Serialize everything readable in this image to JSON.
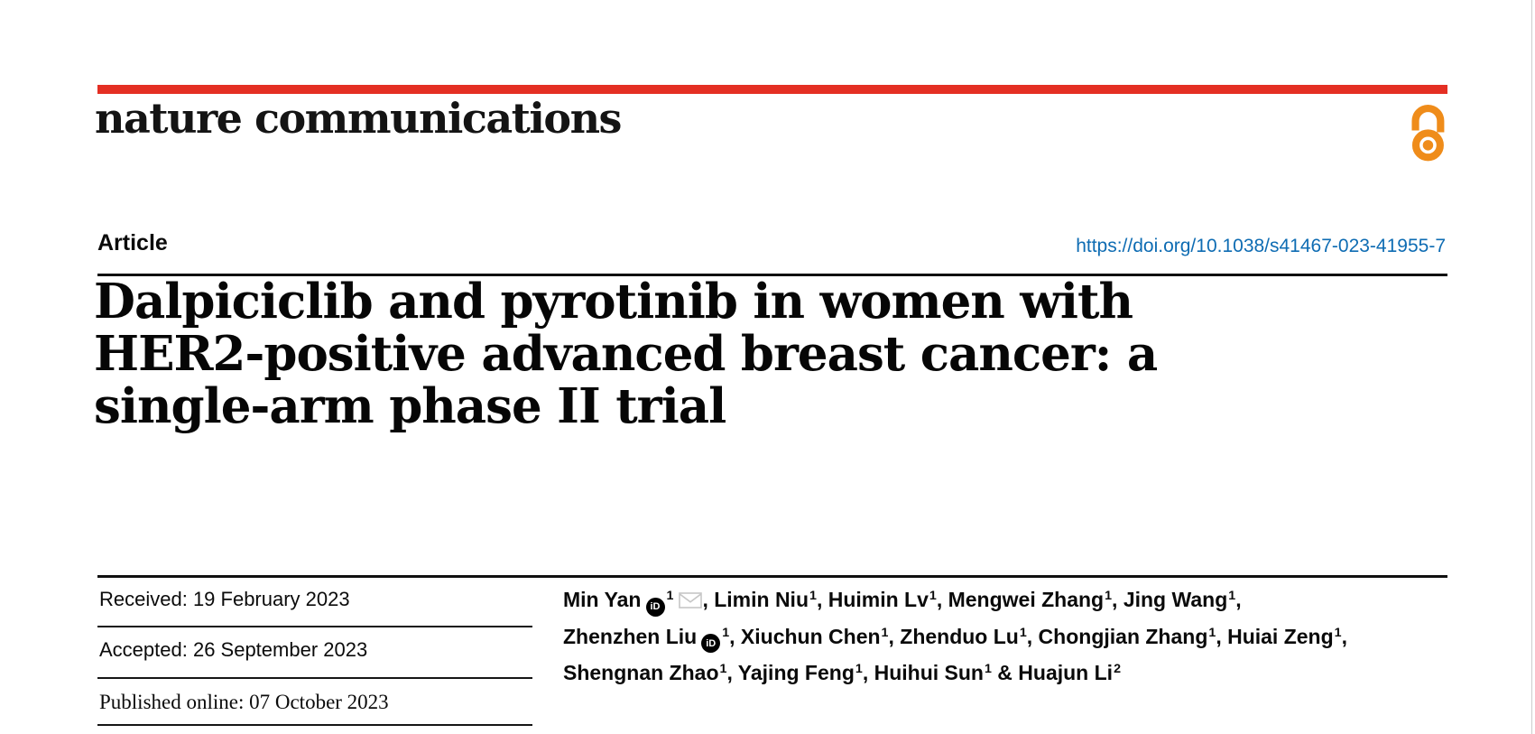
{
  "masthead": {
    "journal_name": "nature communications",
    "open_access_icon": "open-access-padlock-icon"
  },
  "article_header": {
    "type_label": "Article",
    "doi_link": "https://doi.org/10.1038/s41467-023-41955-7",
    "title_lines": [
      "Dalpiciclib and pyrotinib in women with",
      "HER2-positive advanced breast cancer: a",
      "single-arm phase II trial"
    ]
  },
  "history": {
    "received": "Received: 19 February 2023",
    "accepted": "Accepted: 26 September 2023",
    "published_online": "Published online: 07 October 2023"
  },
  "authors": {
    "orcid_glyph": "iD",
    "lines": [
      [
        {
          "t": "text",
          "v": "Min Yan"
        },
        {
          "t": "icon",
          "v": "orcid"
        },
        {
          "t": "sup",
          "v": "1"
        },
        {
          "t": "icon",
          "v": "email"
        },
        {
          "t": "text",
          "v": ", Limin Niu"
        },
        {
          "t": "sup",
          "v": "1"
        },
        {
          "t": "text",
          "v": ", Huimin Lv"
        },
        {
          "t": "sup",
          "v": "1"
        },
        {
          "t": "text",
          "v": ", Mengwei Zhang"
        },
        {
          "t": "sup",
          "v": "1"
        },
        {
          "t": "text",
          "v": ", Jing Wang"
        },
        {
          "t": "sup",
          "v": "1"
        },
        {
          "t": "text",
          "v": ","
        }
      ],
      [
        {
          "t": "text",
          "v": "Zhenzhen Liu"
        },
        {
          "t": "icon",
          "v": "orcid"
        },
        {
          "t": "sup",
          "v": "1"
        },
        {
          "t": "text",
          "v": ", Xiuchun Chen"
        },
        {
          "t": "sup",
          "v": "1"
        },
        {
          "t": "text",
          "v": ", Zhenduo Lu"
        },
        {
          "t": "sup",
          "v": "1"
        },
        {
          "t": "text",
          "v": ", Chongjian Zhang"
        },
        {
          "t": "sup",
          "v": "1"
        },
        {
          "t": "text",
          "v": ", Huiai Zeng"
        },
        {
          "t": "sup",
          "v": "1"
        },
        {
          "t": "text",
          "v": ","
        }
      ],
      [
        {
          "t": "text",
          "v": "Shengnan Zhao"
        },
        {
          "t": "sup",
          "v": "1"
        },
        {
          "t": "text",
          "v": ", Yajing Feng"
        },
        {
          "t": "sup",
          "v": "1"
        },
        {
          "t": "text",
          "v": ", Huihui Sun"
        },
        {
          "t": "sup",
          "v": "1"
        },
        {
          "t": "text",
          "v": " & Huajun Li"
        },
        {
          "t": "sup",
          "v": "2"
        }
      ]
    ]
  },
  "colors": {
    "brand_red": "#e42f23",
    "open_access_orange": "#ef8c1a",
    "link_blue": "#0e6cb3"
  }
}
